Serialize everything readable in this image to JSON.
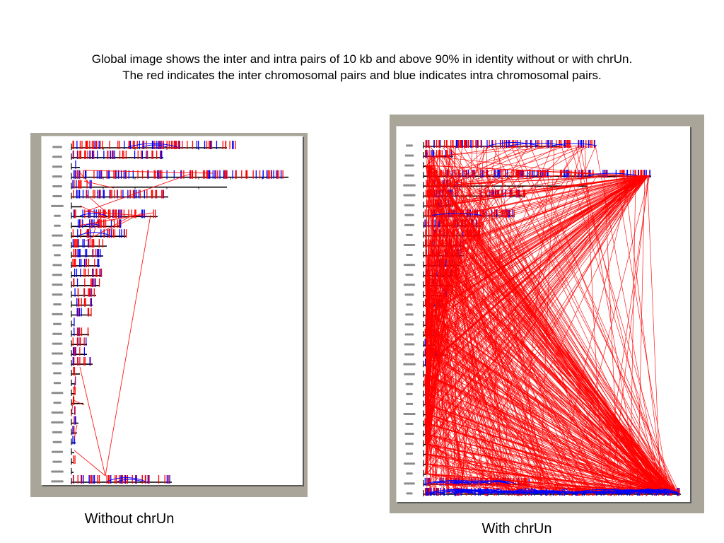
{
  "slide": {
    "title": [
      "Global image shows the inter and intra pairs of 10 kb and above 90% in identity without or with chrUn.",
      "The red indicates the inter chromosomal pairs and blue indicates intra chromosomal pairs."
    ]
  },
  "figures": {
    "left": {
      "caption": "Without chrUn"
    },
    "right": {
      "caption": "With chrUn"
    }
  },
  "colors": {
    "inter_pairs": "#ff0000",
    "intra_pairs": "#0000ff",
    "chromosome_axis": "#000000",
    "figure_frame": "#a9a598",
    "slide_background": "#ffffff"
  }
}
